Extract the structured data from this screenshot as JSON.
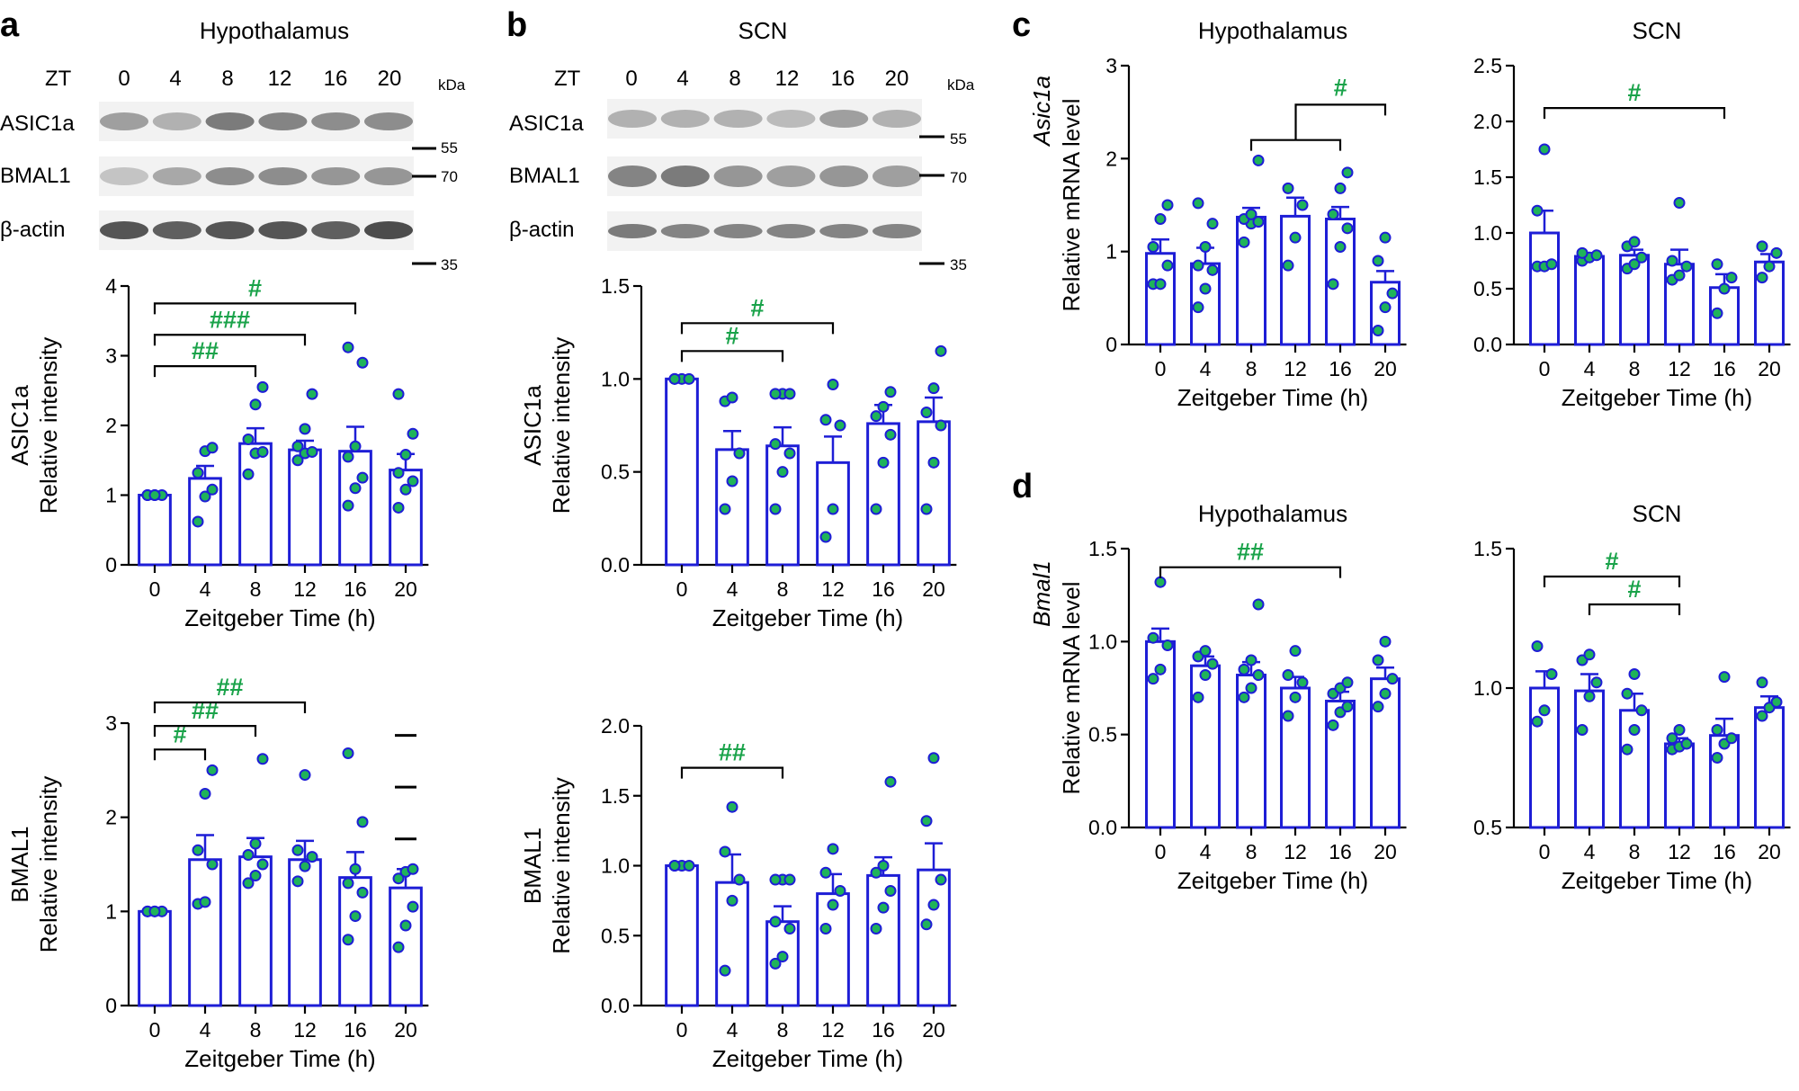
{
  "panels": {
    "a": "a",
    "b": "b",
    "c": "c",
    "d": "d"
  },
  "blots": [
    {
      "id": "a",
      "title": "Hypothalamus",
      "zt_label": "ZT",
      "zt": [
        "0",
        "4",
        "8",
        "12",
        "16",
        "20"
      ],
      "kda_label": "kDa",
      "bands": [
        "ASIC1a",
        "BMAL1",
        "β-actin"
      ],
      "markers": [
        "55",
        "70",
        "35"
      ]
    },
    {
      "id": "b",
      "title": "SCN",
      "zt_label": "ZT",
      "zt": [
        "0",
        "4",
        "8",
        "12",
        "16",
        "20"
      ],
      "kda_label": "kDa",
      "bands": [
        "ASIC1a",
        "BMAL1",
        "β-actin"
      ],
      "markers": [
        "55",
        "70",
        "35"
      ]
    }
  ],
  "colors": {
    "bar": "#1e1ed6",
    "dot_fill": "#1fb35a",
    "sig": "#1aa34a",
    "blot_band": "#3a3a3a"
  },
  "chart_data": [
    {
      "id": "a-asic1a",
      "type": "bar",
      "title": "",
      "ylabel1": "ASIC1a",
      "ylabel2": "Relative intensity",
      "xlabel": "Zeitgeber Time (h)",
      "categories": [
        "0",
        "4",
        "8",
        "12",
        "16",
        "20"
      ],
      "values": [
        1.0,
        1.24,
        1.74,
        1.65,
        1.63,
        1.36
      ],
      "errors": [
        0.02,
        0.18,
        0.22,
        0.13,
        0.35,
        0.23
      ],
      "points": [
        [
          1,
          1,
          1,
          1,
          1
        ],
        [
          0.62,
          0.98,
          1.08,
          1.32,
          1.63,
          1.68
        ],
        [
          1.3,
          1.6,
          1.62,
          1.8,
          2.3,
          2.55
        ],
        [
          1.5,
          1.6,
          1.62,
          1.7,
          1.95,
          2.45
        ],
        [
          0.85,
          1.1,
          1.25,
          1.55,
          1.7,
          2.9,
          3.12
        ],
        [
          0.82,
          1.08,
          1.2,
          1.32,
          1.58,
          1.88,
          2.45
        ]
      ],
      "ylim": [
        0,
        4
      ],
      "yticks": [
        "0",
        "1",
        "2",
        "3",
        "4"
      ],
      "sig": [
        {
          "from": 0,
          "to": 2,
          "label": "##",
          "y": 2.85
        },
        {
          "from": 0,
          "to": 3,
          "label": "###",
          "y": 3.3
        },
        {
          "from": 0,
          "to": 4,
          "label": "#",
          "y": 3.75
        }
      ]
    },
    {
      "id": "a-bmal1",
      "type": "bar",
      "title": "",
      "ylabel1": "BMAL1",
      "ylabel2": "Relative intensity",
      "xlabel": "Zeitgeber Time (h)",
      "categories": [
        "0",
        "4",
        "8",
        "12",
        "16",
        "20"
      ],
      "values": [
        1.0,
        1.55,
        1.58,
        1.55,
        1.36,
        1.25
      ],
      "errors": [
        0.02,
        0.26,
        0.2,
        0.2,
        0.27,
        0.2
      ],
      "points": [
        [
          1,
          1,
          1,
          1,
          1
        ],
        [
          1.08,
          1.1,
          1.5,
          1.65,
          2.25,
          2.5
        ],
        [
          1.3,
          1.38,
          1.5,
          1.6,
          1.72,
          2.62
        ],
        [
          1.32,
          1.48,
          1.58,
          1.65,
          2.45
        ],
        [
          0.7,
          0.95,
          1.2,
          1.3,
          1.45,
          1.95,
          2.68
        ],
        [
          0.62,
          0.85,
          1.05,
          1.35,
          1.42,
          1.45
        ]
      ],
      "ylim": [
        0,
        3
      ],
      "yticks": [
        "0",
        "1",
        "2",
        "3"
      ],
      "sig": [
        {
          "from": 0,
          "to": 1,
          "label": "#",
          "y": 2.72
        },
        {
          "from": 0,
          "to": 2,
          "label": "##",
          "y": 2.97
        },
        {
          "from": 0,
          "to": 3,
          "label": "##",
          "y": 3.22
        }
      ],
      "dashes": [
        1.77,
        2.32,
        2.87
      ]
    },
    {
      "id": "b-asic1a",
      "type": "bar",
      "title": "",
      "ylabel1": "ASIC1a",
      "ylabel2": "Relative intensity",
      "xlabel": "Zeitgeber Time (h)",
      "categories": [
        "0",
        "4",
        "8",
        "12",
        "16",
        "20"
      ],
      "values": [
        1.0,
        0.62,
        0.64,
        0.55,
        0.76,
        0.77
      ],
      "errors": [
        0.01,
        0.1,
        0.1,
        0.14,
        0.1,
        0.13
      ],
      "points": [
        [
          1,
          1,
          1,
          1
        ],
        [
          0.3,
          0.45,
          0.6,
          0.88,
          0.9
        ],
        [
          0.3,
          0.5,
          0.6,
          0.65,
          0.92,
          0.92,
          0.92
        ],
        [
          0.15,
          0.3,
          0.75,
          0.78,
          0.97
        ],
        [
          0.3,
          0.55,
          0.7,
          0.8,
          0.85,
          0.93
        ],
        [
          0.3,
          0.55,
          0.75,
          0.82,
          0.95,
          1.15
        ]
      ],
      "ylim": [
        0,
        1.5
      ],
      "yticks": [
        "0.0",
        "0.5",
        "1.0",
        "1.5"
      ],
      "sig": [
        {
          "from": 0,
          "to": 2,
          "label": "#",
          "y": 1.15
        },
        {
          "from": 0,
          "to": 3,
          "label": "#",
          "y": 1.3
        }
      ]
    },
    {
      "id": "b-bmal1",
      "type": "bar",
      "title": "",
      "ylabel1": "BMAL1",
      "ylabel2": "Relative intensity",
      "xlabel": "Zeitgeber Time (h)",
      "categories": [
        "0",
        "4",
        "8",
        "12",
        "16",
        "20"
      ],
      "values": [
        1.0,
        0.88,
        0.6,
        0.8,
        0.93,
        0.97
      ],
      "errors": [
        0.01,
        0.2,
        0.11,
        0.14,
        0.13,
        0.19
      ],
      "points": [
        [
          1,
          1,
          1,
          1
        ],
        [
          0.25,
          0.75,
          0.9,
          1.1,
          1.42
        ],
        [
          0.3,
          0.35,
          0.55,
          0.6,
          0.9,
          0.9,
          0.9
        ],
        [
          0.55,
          0.72,
          0.82,
          0.95,
          1.12
        ],
        [
          0.55,
          0.7,
          0.82,
          0.95,
          1.0,
          1.6
        ],
        [
          0.58,
          0.72,
          0.9,
          1.32,
          1.77
        ]
      ],
      "ylim": [
        0,
        2.0
      ],
      "yticks": [
        "0.0",
        "0.5",
        "1.0",
        "1.5",
        "2.0"
      ],
      "sig": [
        {
          "from": 0,
          "to": 2,
          "label": "##",
          "y": 1.7
        }
      ]
    },
    {
      "id": "c-hyp",
      "type": "bar",
      "title": "Hypothalamus",
      "ylabel1": "Asic1a",
      "ylabel2": "Relative mRNA level",
      "xlabel": "Zeitgeber Time (h)",
      "categories": [
        "0",
        "4",
        "8",
        "12",
        "16",
        "20"
      ],
      "values": [
        0.98,
        0.87,
        1.37,
        1.38,
        1.35,
        0.67
      ],
      "errors": [
        0.15,
        0.17,
        0.1,
        0.2,
        0.13,
        0.12
      ],
      "points": [
        [
          0.65,
          0.65,
          0.85,
          1.05,
          1.35,
          1.5
        ],
        [
          0.4,
          0.6,
          0.8,
          0.85,
          1.05,
          1.3,
          1.52
        ],
        [
          1.1,
          1.3,
          1.32,
          1.35,
          1.4,
          1.98
        ],
        [
          0.85,
          1.15,
          1.5,
          1.68
        ],
        [
          0.65,
          1.05,
          1.25,
          1.4,
          1.68,
          1.85
        ],
        [
          0.15,
          0.4,
          0.55,
          0.9,
          1.15
        ]
      ],
      "ylim": [
        0,
        3
      ],
      "yticks": [
        "0",
        "1",
        "2",
        "3"
      ],
      "sig": [
        {
          "from": 2,
          "to": 4,
          "label": "",
          "y": 2.2
        },
        {
          "from": 3,
          "to": 5,
          "label": "#",
          "y": 2.58,
          "hook": true
        }
      ]
    },
    {
      "id": "c-scn",
      "type": "bar",
      "title": "SCN",
      "ylabel1": "",
      "ylabel2": "",
      "xlabel": "Zeitgeber Time (h)",
      "categories": [
        "0",
        "4",
        "8",
        "12",
        "16",
        "20"
      ],
      "values": [
        1.0,
        0.79,
        0.8,
        0.72,
        0.51,
        0.74
      ],
      "errors": [
        0.2,
        0.03,
        0.05,
        0.13,
        0.12,
        0.07
      ],
      "points": [
        [
          0.7,
          0.7,
          0.72,
          1.2,
          1.75
        ],
        [
          0.75,
          0.78,
          0.8,
          0.82
        ],
        [
          0.68,
          0.72,
          0.78,
          0.88,
          0.92
        ],
        [
          0.58,
          0.62,
          0.7,
          0.75,
          1.27
        ],
        [
          0.28,
          0.5,
          0.6,
          0.72
        ],
        [
          0.6,
          0.7,
          0.82,
          0.88
        ]
      ],
      "ylim": [
        0,
        2.5
      ],
      "yticks": [
        "0.0",
        "0.5",
        "1.0",
        "1.5",
        "2.0",
        "2.5"
      ],
      "sig": [
        {
          "from": 0,
          "to": 4,
          "label": "#",
          "y": 2.12
        }
      ]
    },
    {
      "id": "d-hyp",
      "type": "bar",
      "title": "Hypothalamus",
      "ylabel1": "Bmal1",
      "ylabel2": "Relative mRNA level",
      "xlabel": "Zeitgeber Time (h)",
      "categories": [
        "0",
        "4",
        "8",
        "12",
        "16",
        "20"
      ],
      "values": [
        1.0,
        0.87,
        0.82,
        0.75,
        0.68,
        0.8
      ],
      "errors": [
        0.07,
        0.05,
        0.07,
        0.06,
        0.05,
        0.06
      ],
      "points": [
        [
          0.8,
          0.85,
          0.98,
          1.02,
          1.32
        ],
        [
          0.7,
          0.82,
          0.88,
          0.92,
          0.95
        ],
        [
          0.7,
          0.75,
          0.82,
          0.85,
          0.9,
          1.2
        ],
        [
          0.6,
          0.7,
          0.78,
          0.82,
          0.95
        ],
        [
          0.55,
          0.62,
          0.65,
          0.72,
          0.75,
          0.78
        ],
        [
          0.65,
          0.72,
          0.8,
          0.9,
          1.0
        ]
      ],
      "ylim": [
        0,
        1.5
      ],
      "yticks": [
        "0.0",
        "0.5",
        "1.0",
        "1.5"
      ],
      "sig": [
        {
          "from": 0,
          "to": 4,
          "label": "##",
          "y": 1.4
        }
      ]
    },
    {
      "id": "d-scn",
      "type": "bar",
      "title": "SCN",
      "ylabel1": "",
      "ylabel2": "",
      "xlabel": "Zeitgeber Time (h)",
      "categories": [
        "0",
        "4",
        "8",
        "12",
        "16",
        "20"
      ],
      "values": [
        1.0,
        0.99,
        0.92,
        0.8,
        0.83,
        0.93
      ],
      "errors": [
        0.06,
        0.06,
        0.06,
        0.02,
        0.06,
        0.04
      ],
      "points": [
        [
          0.88,
          0.92,
          1.05,
          1.15
        ],
        [
          0.85,
          0.97,
          1.02,
          1.1,
          1.12
        ],
        [
          0.78,
          0.85,
          0.92,
          0.98,
          1.05
        ],
        [
          0.78,
          0.79,
          0.8,
          0.82,
          0.85
        ],
        [
          0.75,
          0.8,
          0.82,
          0.85,
          1.04
        ],
        [
          0.9,
          0.93,
          0.95,
          1.02
        ]
      ],
      "ylim": [
        0.5,
        1.5
      ],
      "yticks": [
        "0.5",
        "1.0",
        "1.5"
      ],
      "sig": [
        {
          "from": 0,
          "to": 3,
          "label": "#",
          "y": 1.4
        },
        {
          "from": 1,
          "to": 3,
          "label": "#",
          "y": 1.3
        }
      ]
    }
  ]
}
